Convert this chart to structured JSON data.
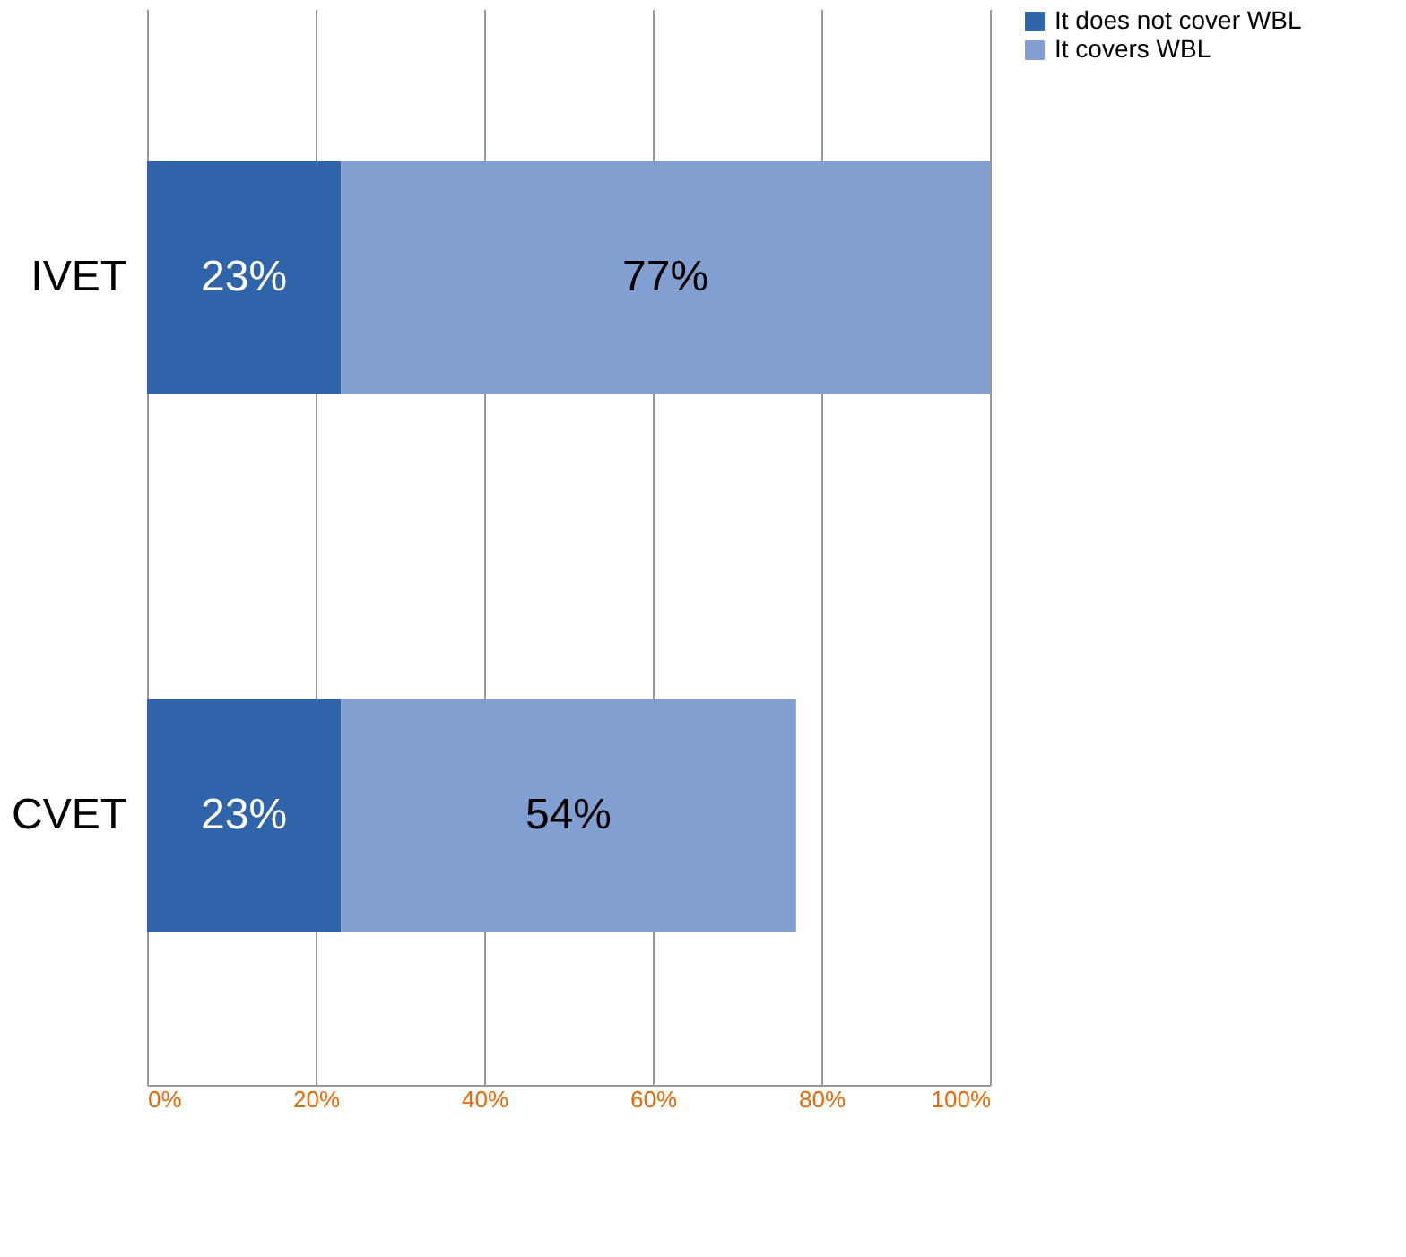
{
  "chart_data": {
    "type": "bar",
    "orientation": "horizontal",
    "stacked": true,
    "categories": [
      "IVET",
      "CVET"
    ],
    "series": [
      {
        "name": "It does not cover WBL",
        "color": "#2f64ab",
        "values": [
          23,
          23
        ],
        "value_labels": [
          "23%",
          "23%"
        ]
      },
      {
        "name": "It covers WBL",
        "color": "#819fd1",
        "values": [
          77,
          54
        ],
        "value_labels": [
          "77%",
          "54%"
        ]
      }
    ],
    "xlim": [
      0,
      100
    ],
    "xticks": [
      {
        "value": 0,
        "label": "0%"
      },
      {
        "value": 20,
        "label": "20%"
      },
      {
        "value": 40,
        "label": "40%"
      },
      {
        "value": 60,
        "label": "60%"
      },
      {
        "value": 80,
        "label": "80%"
      },
      {
        "value": 100,
        "label": "100%"
      }
    ],
    "grid": "x",
    "legend": "right"
  }
}
